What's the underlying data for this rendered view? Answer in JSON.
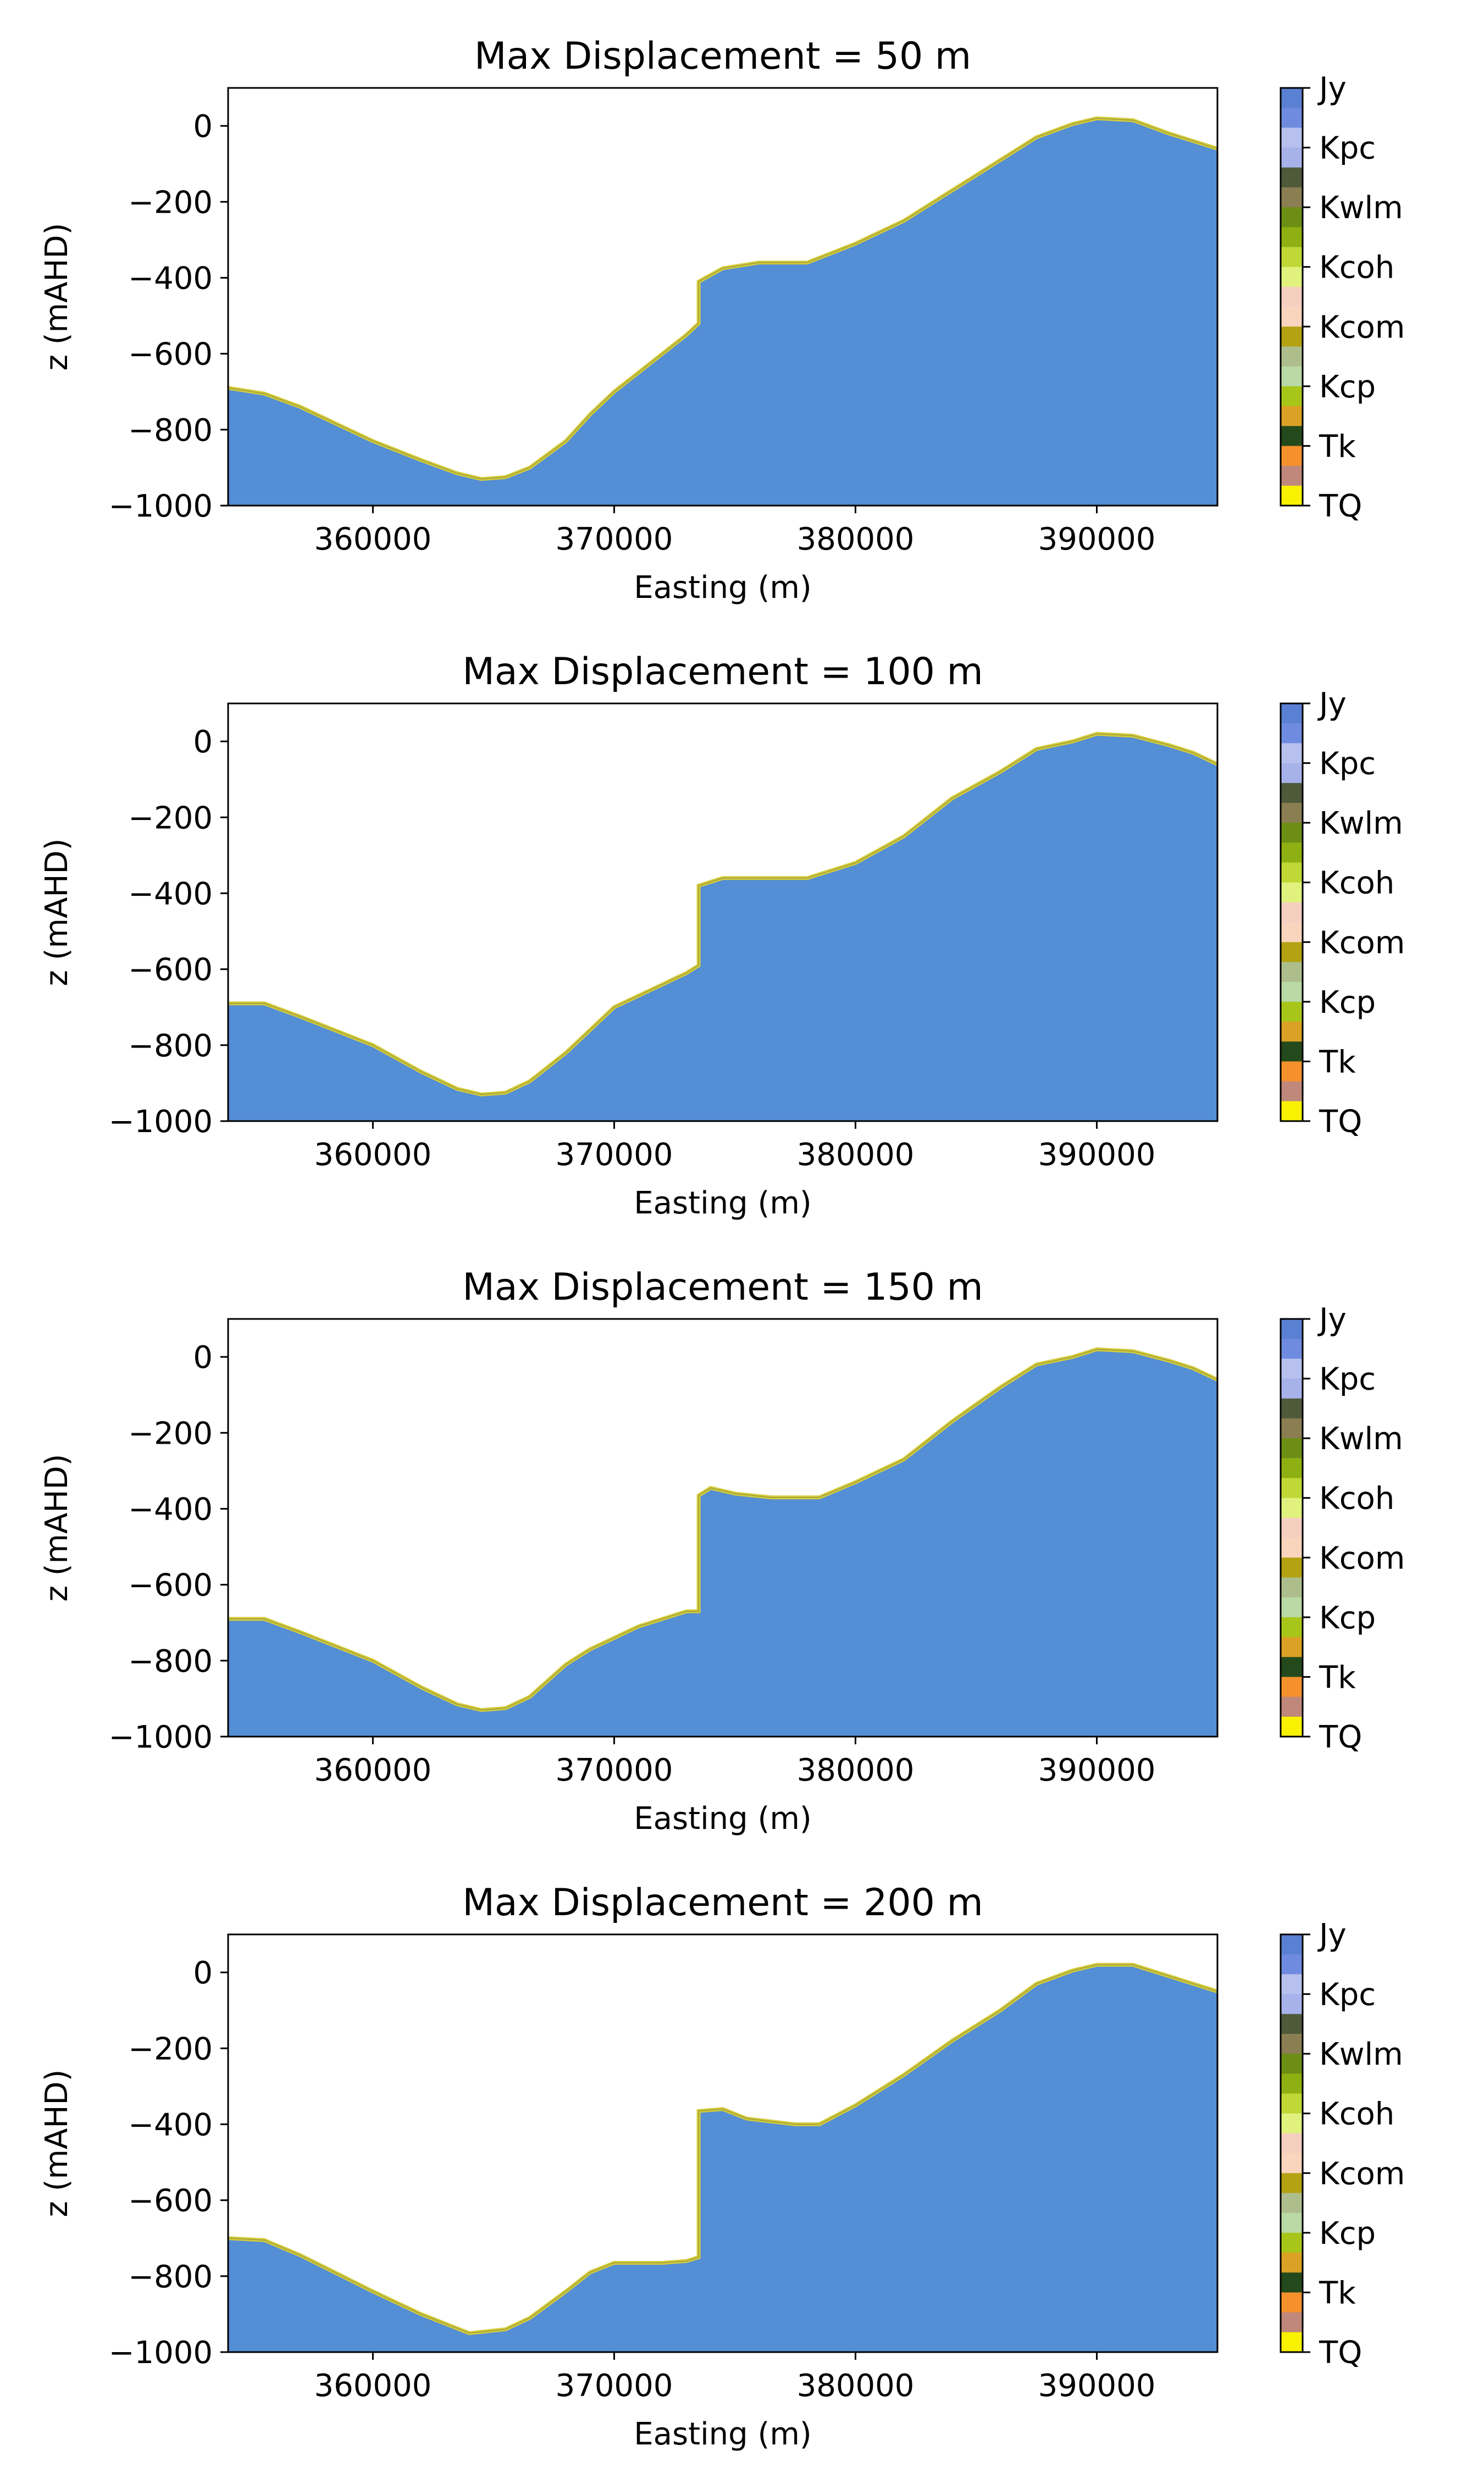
{
  "chart_data": [
    {
      "type": "area",
      "title": "Max Displacement = 50 m",
      "xlabel": "Easting (m)",
      "ylabel": "z (mAHD)",
      "xlim": [
        354000,
        395000
      ],
      "ylim": [
        -1000,
        100
      ],
      "xticks": [
        360000,
        370000,
        380000,
        390000
      ],
      "yticks": [
        0,
        -200,
        -400,
        -600,
        -800,
        -1000
      ],
      "x": [
        354000,
        355500,
        357000,
        360000,
        362000,
        363500,
        364500,
        365500,
        366500,
        368000,
        369000,
        370000,
        371000,
        372000,
        373000,
        373500,
        373500,
        374500,
        376000,
        378000,
        380000,
        382000,
        384000,
        386000,
        387500,
        389000,
        390000,
        391500,
        393000,
        394000,
        395000
      ],
      "top": [
        -690,
        -705,
        -740,
        -830,
        -880,
        -915,
        -930,
        -925,
        -900,
        -830,
        -760,
        -700,
        -650,
        -600,
        -550,
        -520,
        -410,
        -375,
        -360,
        -360,
        -310,
        -250,
        -170,
        -90,
        -30,
        5,
        20,
        15,
        -20,
        -40,
        -60
      ],
      "base_color": "#548ed4",
      "edge_color": "#d4cc3c"
    },
    {
      "type": "area",
      "title": "Max Displacement = 100 m",
      "xlabel": "Easting (m)",
      "ylabel": "z (mAHD)",
      "xlim": [
        354000,
        395000
      ],
      "ylim": [
        -1000,
        100
      ],
      "xticks": [
        360000,
        370000,
        380000,
        390000
      ],
      "yticks": [
        0,
        -200,
        -400,
        -600,
        -800,
        -1000
      ],
      "x": [
        354000,
        355500,
        357000,
        360000,
        362000,
        363500,
        364500,
        365500,
        366500,
        368000,
        369000,
        370000,
        371000,
        372000,
        373000,
        373500,
        373500,
        374500,
        376000,
        378000,
        380000,
        382000,
        384000,
        386000,
        387500,
        389000,
        390000,
        391500,
        393000,
        394000,
        395000
      ],
      "top": [
        -690,
        -690,
        -725,
        -800,
        -870,
        -915,
        -930,
        -925,
        -895,
        -820,
        -760,
        -700,
        -670,
        -640,
        -610,
        -590,
        -380,
        -360,
        -360,
        -360,
        -320,
        -250,
        -150,
        -80,
        -20,
        0,
        20,
        15,
        -10,
        -30,
        -60
      ],
      "base_color": "#548ed4",
      "edge_color": "#d4cc3c"
    },
    {
      "type": "area",
      "title": "Max Displacement = 150 m",
      "xlabel": "Easting (m)",
      "ylabel": "z (mAHD)",
      "xlim": [
        354000,
        395000
      ],
      "ylim": [
        -1000,
        100
      ],
      "xticks": [
        360000,
        370000,
        380000,
        390000
      ],
      "yticks": [
        0,
        -200,
        -400,
        -600,
        -800,
        -1000
      ],
      "x": [
        354000,
        355500,
        357000,
        360000,
        362000,
        363500,
        364500,
        365500,
        366500,
        368000,
        369000,
        370000,
        371000,
        372000,
        373000,
        373500,
        373500,
        374000,
        375000,
        376500,
        378500,
        380000,
        382000,
        384000,
        386000,
        387500,
        389000,
        390000,
        391500,
        393000,
        394000,
        395000
      ],
      "top": [
        -690,
        -690,
        -725,
        -800,
        -870,
        -915,
        -930,
        -925,
        -895,
        -810,
        -770,
        -740,
        -710,
        -690,
        -670,
        -670,
        -365,
        -345,
        -360,
        -370,
        -370,
        -330,
        -270,
        -170,
        -80,
        -20,
        0,
        20,
        15,
        -10,
        -30,
        -60
      ],
      "base_color": "#548ed4",
      "edge_color": "#d4cc3c"
    },
    {
      "type": "area",
      "title": "Max Displacement = 200 m",
      "xlabel": "Easting (m)",
      "ylabel": "z (mAHD)",
      "xlim": [
        354000,
        395000
      ],
      "ylim": [
        -1000,
        100
      ],
      "xticks": [
        360000,
        370000,
        380000,
        390000
      ],
      "yticks": [
        0,
        -200,
        -400,
        -600,
        -800,
        -1000
      ],
      "x": [
        354000,
        355500,
        357000,
        360000,
        362000,
        364000,
        365500,
        366500,
        368000,
        369000,
        370000,
        371000,
        372000,
        373000,
        373500,
        373500,
        374500,
        375500,
        377500,
        378500,
        380000,
        382000,
        384000,
        386000,
        387500,
        389000,
        390000,
        391500,
        393000,
        394000,
        395000
      ],
      "top": [
        -700,
        -705,
        -745,
        -840,
        -900,
        -950,
        -940,
        -910,
        -840,
        -790,
        -765,
        -765,
        -765,
        -760,
        -750,
        -365,
        -360,
        -385,
        -400,
        -400,
        -350,
        -270,
        -180,
        -100,
        -30,
        5,
        20,
        20,
        -10,
        -30,
        -50
      ],
      "base_color": "#548ed4",
      "edge_color": "#d4cc3c"
    }
  ],
  "colorbar": {
    "labels": [
      "Jy",
      "Kpc",
      "Kwlm",
      "Kcoh",
      "Kcom",
      "Kcp",
      "Tk",
      "TQ"
    ],
    "colors": [
      "#5a80d4",
      "#6f8be0",
      "#b8c0ee",
      "#a8b2ea",
      "#4f5a3a",
      "#8a7e52",
      "#6d8e15",
      "#8fb012",
      "#c0d836",
      "#e0f27d",
      "#f5cfc0",
      "#f9d5bd",
      "#b4a213",
      "#aebd8c",
      "#b9d9a5",
      "#a8c61a",
      "#dba125",
      "#244a1c",
      "#f4912c",
      "#c0887a",
      "#f8f200"
    ]
  }
}
